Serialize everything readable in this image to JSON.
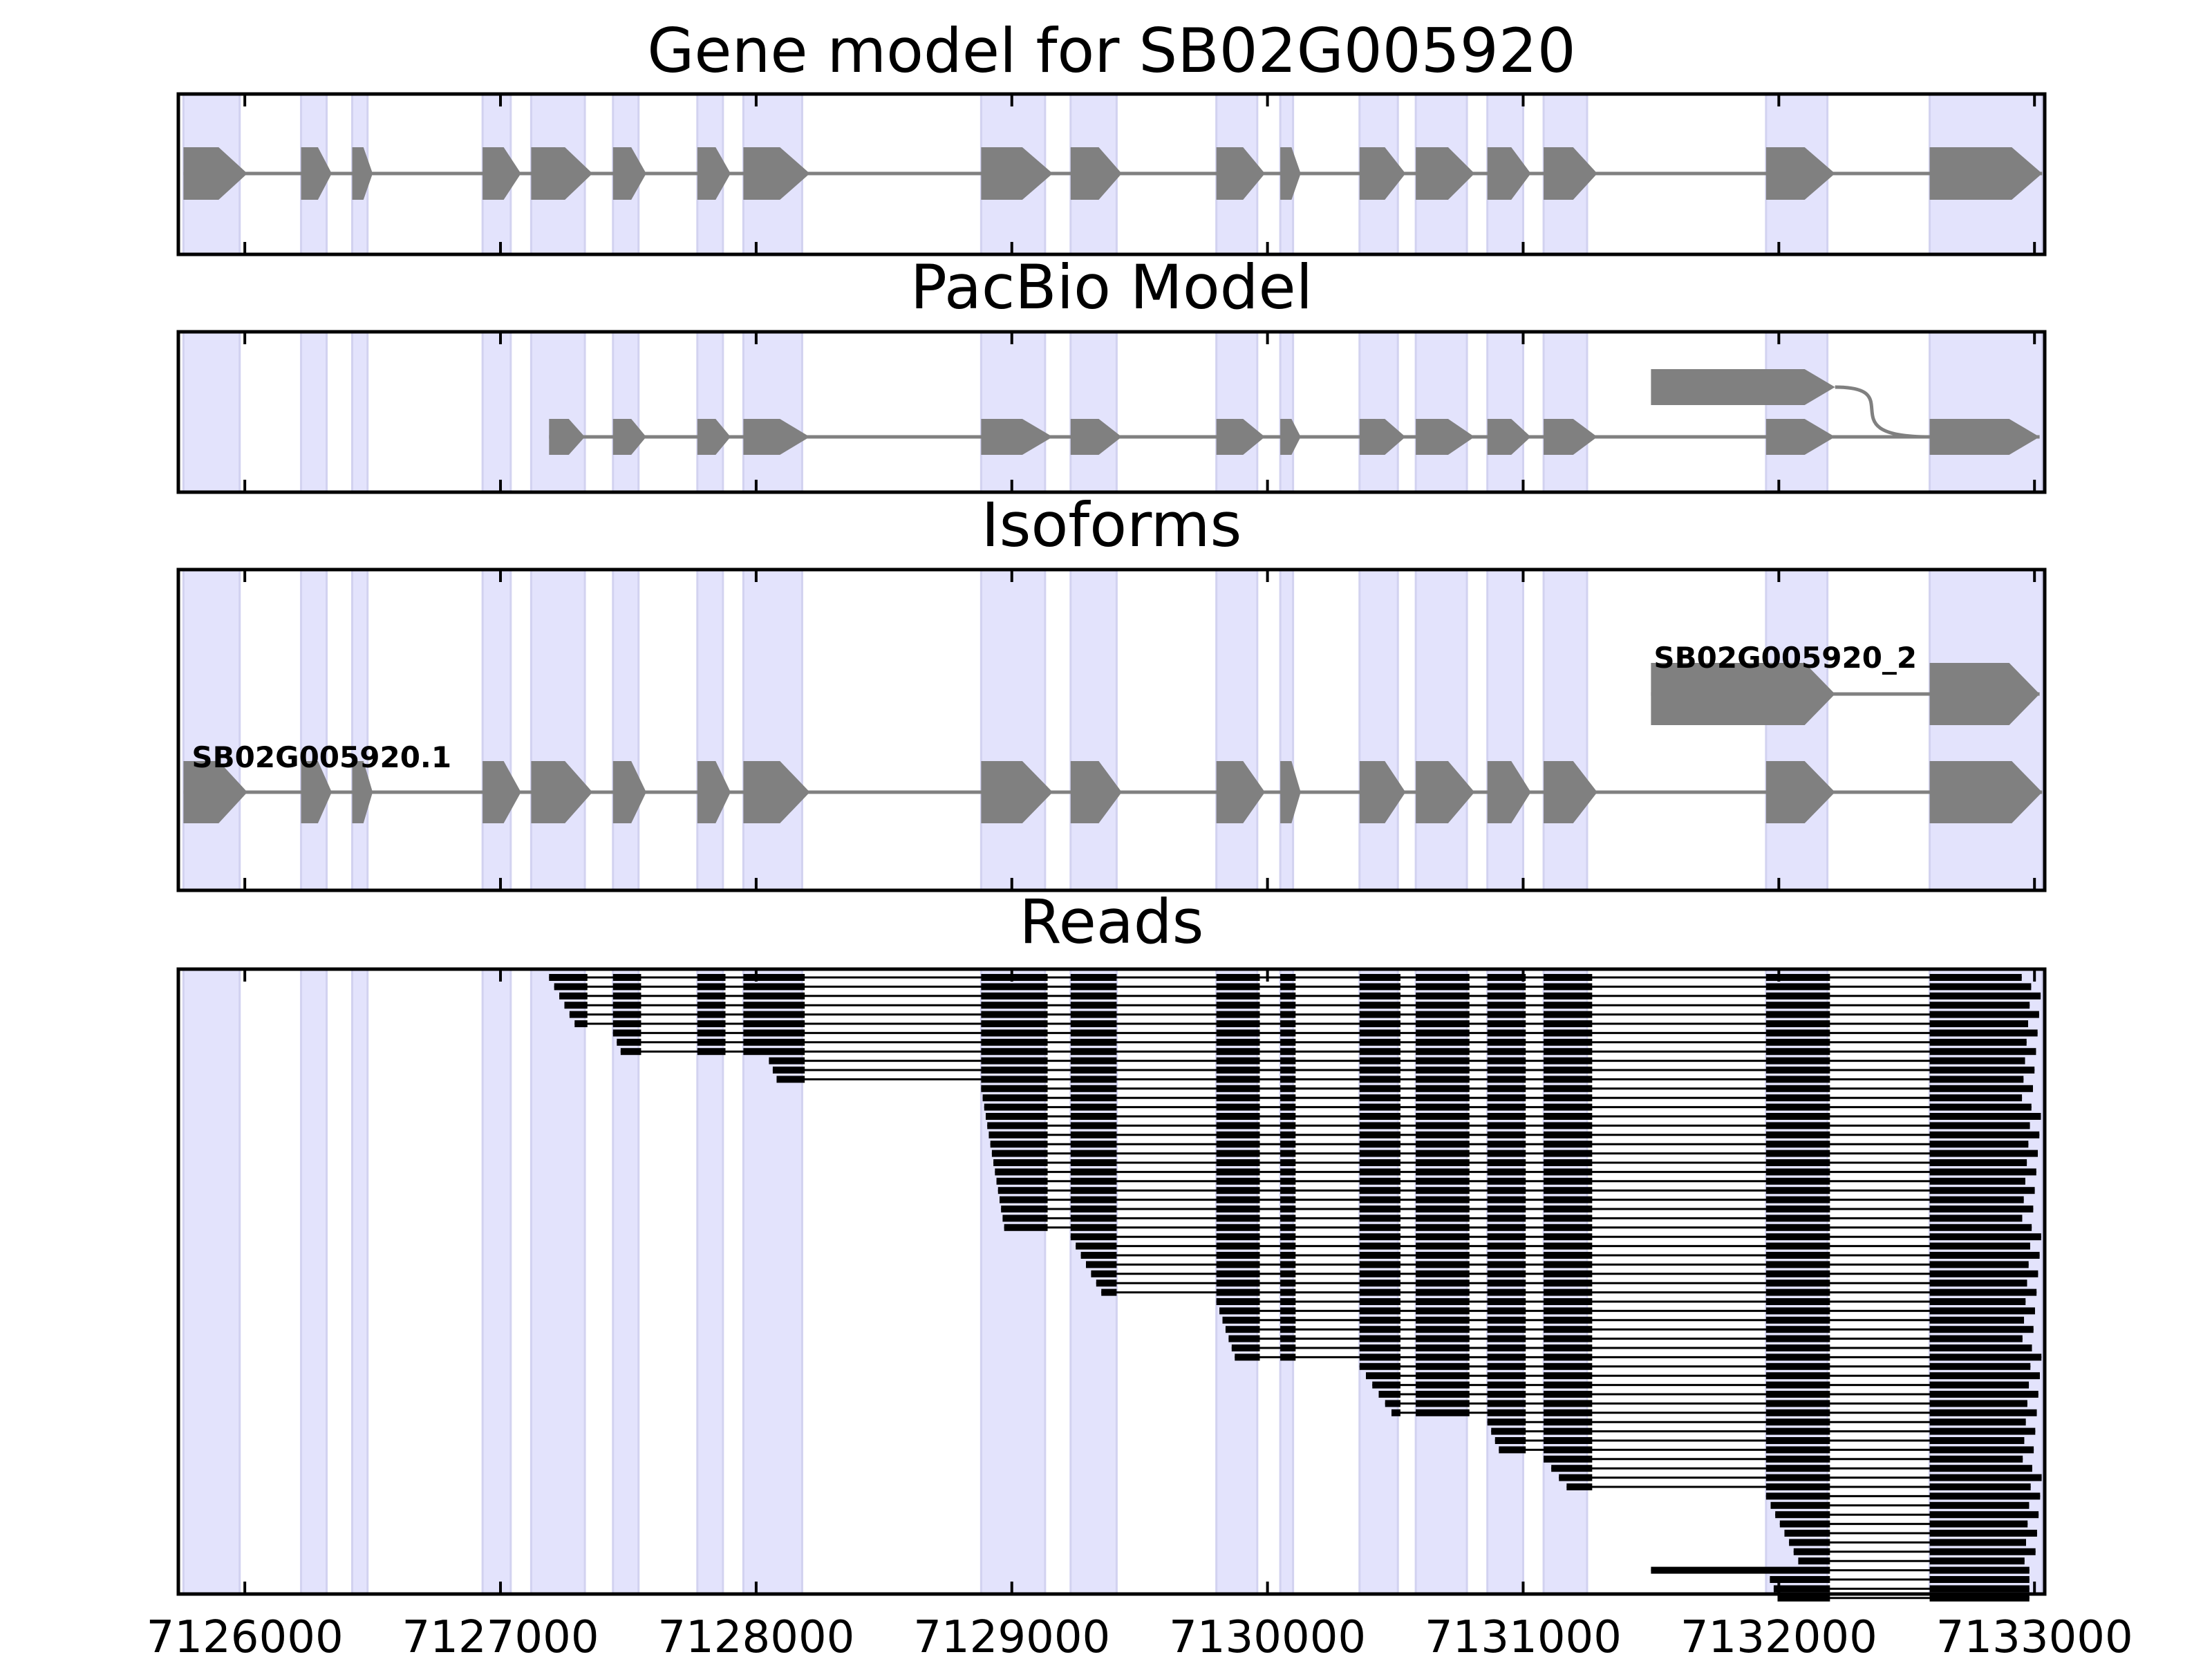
{
  "titles": {
    "gene_model": "Gene model for SB02G005920",
    "pacbio": "PacBio Model",
    "isoforms": "Isoforms",
    "reads": "Reads"
  },
  "colors": {
    "highlight": "#e3e3fc",
    "highlight_edge": "#d2d2f0",
    "feature": "#808080",
    "read": "#000000",
    "axis": "#000000"
  },
  "x_axis": {
    "min": 7125740,
    "max": 7133040,
    "ticks": [
      7126000,
      7127000,
      7128000,
      7129000,
      7130000,
      7131000,
      7132000,
      7133000
    ],
    "tick_labels": [
      "7126000",
      "7127000",
      "7128000",
      "7129000",
      "7130000",
      "7131000",
      "7132000",
      "7133000"
    ]
  },
  "exon_highlights": [
    [
      7125760,
      7125980
    ],
    [
      7126220,
      7126320
    ],
    [
      7126420,
      7126480
    ],
    [
      7126930,
      7127040
    ],
    [
      7127120,
      7127330
    ],
    [
      7127440,
      7127540
    ],
    [
      7127770,
      7127870
    ],
    [
      7127950,
      7128180
    ],
    [
      7128880,
      7129130
    ],
    [
      7129230,
      7129410
    ],
    [
      7129800,
      7129960
    ],
    [
      7130050,
      7130100
    ],
    [
      7130360,
      7130510
    ],
    [
      7130580,
      7130780
    ],
    [
      7130860,
      7131000
    ],
    [
      7131080,
      7131250
    ],
    [
      7131950,
      7132190
    ],
    [
      7132590,
      7133030
    ]
  ],
  "gene_model": {
    "exons": [
      [
        7125760,
        7126010
      ],
      [
        7126220,
        7126340
      ],
      [
        7126420,
        7126500
      ],
      [
        7126930,
        7127080
      ],
      [
        7127120,
        7127360
      ],
      [
        7127440,
        7127570
      ],
      [
        7127770,
        7127900
      ],
      [
        7127950,
        7128210
      ],
      [
        7128880,
        7129160
      ],
      [
        7129230,
        7129430
      ],
      [
        7129800,
        7129990
      ],
      [
        7130050,
        7130130
      ],
      [
        7130360,
        7130540
      ],
      [
        7130580,
        7130810
      ],
      [
        7130860,
        7131030
      ],
      [
        7131080,
        7131290
      ],
      [
        7131950,
        7132220
      ],
      [
        7132590,
        7133030
      ]
    ]
  },
  "pacbio": {
    "main": [
      [
        7127190,
        7127330
      ],
      [
        7127440,
        7127570
      ],
      [
        7127770,
        7127900
      ],
      [
        7127950,
        7128210
      ],
      [
        7128880,
        7129160
      ],
      [
        7129230,
        7129430
      ],
      [
        7129800,
        7129990
      ],
      [
        7130050,
        7130130
      ],
      [
        7130360,
        7130540
      ],
      [
        7130580,
        7130810
      ],
      [
        7130860,
        7131030
      ],
      [
        7131080,
        7131290
      ],
      [
        7131950,
        7132220
      ],
      [
        7132590,
        7133020
      ]
    ],
    "alt_exon": [
      7131500,
      7132220
    ],
    "alt_join_end": 7132590
  },
  "isoforms": [
    {
      "label": "SB02G005920.1",
      "exons": [
        [
          7125760,
          7126010
        ],
        [
          7126220,
          7126340
        ],
        [
          7126420,
          7126500
        ],
        [
          7126930,
          7127080
        ],
        [
          7127120,
          7127360
        ],
        [
          7127440,
          7127570
        ],
        [
          7127770,
          7127900
        ],
        [
          7127950,
          7128210
        ],
        [
          7128880,
          7129160
        ],
        [
          7129230,
          7129430
        ],
        [
          7129800,
          7129990
        ],
        [
          7130050,
          7130130
        ],
        [
          7130360,
          7130540
        ],
        [
          7130580,
          7130810
        ],
        [
          7130860,
          7131030
        ],
        [
          7131080,
          7131290
        ],
        [
          7131950,
          7132220
        ],
        [
          7132590,
          7133030
        ]
      ]
    },
    {
      "label": "SB02G005920_2",
      "exons": [
        [
          7131500,
          7132220
        ],
        [
          7132590,
          7133020
        ]
      ]
    }
  ]
}
